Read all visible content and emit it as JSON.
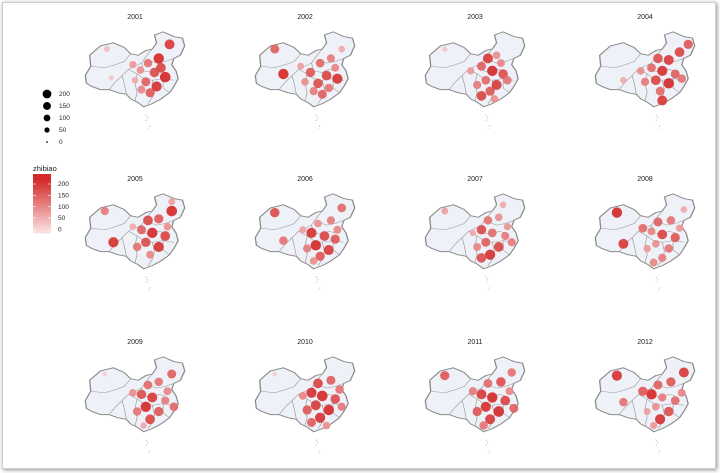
{
  "chart_data": {
    "type": "map",
    "panel_titles": [
      "2001",
      "2002",
      "2003",
      "2004",
      "2005",
      "2006",
      "2007",
      "2008",
      "2009",
      "2010",
      "2011",
      "2012"
    ],
    "legend": {
      "size": {
        "entries": [
          200,
          150,
          100,
          50,
          0
        ]
      },
      "color": {
        "title": "zhibiao",
        "breaks": [
          200,
          150,
          100,
          50,
          0
        ],
        "low_color": "#fff5f5",
        "high_color": "#d42a2a"
      }
    },
    "colors": {
      "land": "#eef2f8",
      "border": "#8a8a8a",
      "point_high": "#d42a2a",
      "point_low": "#fbe0e0"
    },
    "point_values": [
      [
        [
          0.24,
          0.18,
          40
        ],
        [
          0.82,
          0.12,
          180
        ],
        [
          0.62,
          0.36,
          120
        ],
        [
          0.72,
          0.3,
          200
        ],
        [
          0.55,
          0.45,
          90
        ],
        [
          0.68,
          0.48,
          160
        ],
        [
          0.78,
          0.54,
          210
        ],
        [
          0.6,
          0.6,
          140
        ],
        [
          0.7,
          0.66,
          190
        ],
        [
          0.5,
          0.58,
          60
        ],
        [
          0.64,
          0.74,
          150
        ],
        [
          0.56,
          0.7,
          100
        ],
        [
          0.74,
          0.42,
          170
        ],
        [
          0.28,
          0.55,
          30
        ],
        [
          0.48,
          0.38,
          80
        ]
      ],
      [
        [
          0.22,
          0.18,
          140
        ],
        [
          0.3,
          0.5,
          200
        ],
        [
          0.64,
          0.36,
          130
        ],
        [
          0.74,
          0.3,
          110
        ],
        [
          0.55,
          0.48,
          150
        ],
        [
          0.7,
          0.52,
          170
        ],
        [
          0.8,
          0.56,
          190
        ],
        [
          0.62,
          0.62,
          160
        ],
        [
          0.72,
          0.68,
          120
        ],
        [
          0.5,
          0.6,
          90
        ],
        [
          0.66,
          0.76,
          140
        ],
        [
          0.58,
          0.72,
          110
        ],
        [
          0.78,
          0.42,
          100
        ],
        [
          0.46,
          0.4,
          70
        ],
        [
          0.84,
          0.18,
          60
        ]
      ],
      [
        [
          0.22,
          0.18,
          30
        ],
        [
          0.62,
          0.3,
          180
        ],
        [
          0.7,
          0.26,
          90
        ],
        [
          0.56,
          0.4,
          140
        ],
        [
          0.66,
          0.46,
          200
        ],
        [
          0.76,
          0.5,
          160
        ],
        [
          0.6,
          0.58,
          130
        ],
        [
          0.7,
          0.64,
          180
        ],
        [
          0.52,
          0.64,
          110
        ],
        [
          0.64,
          0.72,
          150
        ],
        [
          0.56,
          0.78,
          170
        ],
        [
          0.74,
          0.36,
          100
        ],
        [
          0.46,
          0.46,
          80
        ],
        [
          0.8,
          0.58,
          120
        ],
        [
          0.68,
          0.82,
          90
        ]
      ],
      [
        [
          0.9,
          0.12,
          150
        ],
        [
          0.82,
          0.22,
          170
        ],
        [
          0.62,
          0.3,
          160
        ],
        [
          0.72,
          0.32,
          180
        ],
        [
          0.56,
          0.42,
          130
        ],
        [
          0.66,
          0.46,
          190
        ],
        [
          0.78,
          0.5,
          140
        ],
        [
          0.6,
          0.58,
          170
        ],
        [
          0.72,
          0.62,
          200
        ],
        [
          0.5,
          0.6,
          110
        ],
        [
          0.64,
          0.72,
          130
        ],
        [
          0.84,
          0.56,
          120
        ],
        [
          0.3,
          0.58,
          60
        ],
        [
          0.66,
          0.84,
          180
        ],
        [
          0.46,
          0.46,
          90
        ]
      ],
      [
        [
          0.22,
          0.18,
          110
        ],
        [
          0.3,
          0.58,
          190
        ],
        [
          0.62,
          0.3,
          170
        ],
        [
          0.72,
          0.28,
          150
        ],
        [
          0.84,
          0.18,
          210
        ],
        [
          0.56,
          0.42,
          140
        ],
        [
          0.66,
          0.46,
          200
        ],
        [
          0.78,
          0.5,
          170
        ],
        [
          0.6,
          0.58,
          160
        ],
        [
          0.72,
          0.64,
          190
        ],
        [
          0.52,
          0.64,
          120
        ],
        [
          0.64,
          0.74,
          100
        ],
        [
          0.48,
          0.38,
          60
        ],
        [
          0.8,
          0.38,
          90
        ],
        [
          0.84,
          0.06,
          70
        ]
      ],
      [
        [
          0.22,
          0.2,
          160
        ],
        [
          0.3,
          0.56,
          120
        ],
        [
          0.62,
          0.34,
          90
        ],
        [
          0.74,
          0.3,
          110
        ],
        [
          0.84,
          0.14,
          130
        ],
        [
          0.56,
          0.46,
          190
        ],
        [
          0.68,
          0.5,
          170
        ],
        [
          0.78,
          0.54,
          150
        ],
        [
          0.6,
          0.62,
          200
        ],
        [
          0.72,
          0.68,
          180
        ],
        [
          0.52,
          0.66,
          110
        ],
        [
          0.64,
          0.76,
          150
        ],
        [
          0.48,
          0.42,
          70
        ],
        [
          0.8,
          0.42,
          100
        ],
        [
          0.58,
          0.82,
          90
        ]
      ],
      [
        [
          0.22,
          0.18,
          70
        ],
        [
          0.62,
          0.3,
          120
        ],
        [
          0.72,
          0.26,
          90
        ],
        [
          0.56,
          0.42,
          160
        ],
        [
          0.66,
          0.46,
          130
        ],
        [
          0.78,
          0.5,
          110
        ],
        [
          0.6,
          0.58,
          140
        ],
        [
          0.72,
          0.64,
          170
        ],
        [
          0.52,
          0.64,
          100
        ],
        [
          0.64,
          0.74,
          190
        ],
        [
          0.56,
          0.78,
          160
        ],
        [
          0.8,
          0.38,
          80
        ],
        [
          0.48,
          0.46,
          60
        ],
        [
          0.84,
          0.58,
          110
        ],
        [
          0.76,
          0.1,
          60
        ]
      ],
      [
        [
          0.24,
          0.2,
          200
        ],
        [
          0.3,
          0.6,
          180
        ],
        [
          0.62,
          0.32,
          140
        ],
        [
          0.74,
          0.3,
          120
        ],
        [
          0.86,
          0.16,
          60
        ],
        [
          0.56,
          0.44,
          100
        ],
        [
          0.66,
          0.48,
          170
        ],
        [
          0.78,
          0.52,
          150
        ],
        [
          0.6,
          0.6,
          90
        ],
        [
          0.72,
          0.66,
          120
        ],
        [
          0.52,
          0.66,
          80
        ],
        [
          0.66,
          0.78,
          110
        ],
        [
          0.48,
          0.4,
          130
        ],
        [
          0.82,
          0.4,
          80
        ],
        [
          0.58,
          0.84,
          100
        ]
      ],
      [
        [
          0.22,
          0.18,
          20
        ],
        [
          0.62,
          0.32,
          130
        ],
        [
          0.72,
          0.28,
          120
        ],
        [
          0.84,
          0.18,
          140
        ],
        [
          0.56,
          0.44,
          160
        ],
        [
          0.66,
          0.48,
          180
        ],
        [
          0.78,
          0.52,
          110
        ],
        [
          0.6,
          0.6,
          200
        ],
        [
          0.72,
          0.66,
          150
        ],
        [
          0.52,
          0.66,
          120
        ],
        [
          0.64,
          0.76,
          170
        ],
        [
          0.48,
          0.42,
          90
        ],
        [
          0.8,
          0.4,
          100
        ],
        [
          0.86,
          0.6,
          130
        ],
        [
          0.58,
          0.84,
          60
        ]
      ],
      [
        [
          0.22,
          0.18,
          20
        ],
        [
          0.62,
          0.3,
          170
        ],
        [
          0.74,
          0.26,
          140
        ],
        [
          0.56,
          0.42,
          190
        ],
        [
          0.66,
          0.46,
          210
        ],
        [
          0.78,
          0.5,
          160
        ],
        [
          0.6,
          0.58,
          180
        ],
        [
          0.72,
          0.64,
          200
        ],
        [
          0.52,
          0.64,
          150
        ],
        [
          0.64,
          0.74,
          190
        ],
        [
          0.56,
          0.8,
          140
        ],
        [
          0.48,
          0.46,
          100
        ],
        [
          0.82,
          0.38,
          120
        ],
        [
          0.84,
          0.6,
          110
        ],
        [
          0.7,
          0.84,
          90
        ]
      ],
      [
        [
          0.22,
          0.2,
          150
        ],
        [
          0.62,
          0.3,
          130
        ],
        [
          0.74,
          0.28,
          160
        ],
        [
          0.84,
          0.16,
          120
        ],
        [
          0.56,
          0.44,
          180
        ],
        [
          0.66,
          0.48,
          200
        ],
        [
          0.78,
          0.52,
          170
        ],
        [
          0.6,
          0.6,
          190
        ],
        [
          0.72,
          0.66,
          210
        ],
        [
          0.52,
          0.66,
          150
        ],
        [
          0.64,
          0.76,
          180
        ],
        [
          0.48,
          0.4,
          110
        ],
        [
          0.82,
          0.4,
          100
        ],
        [
          0.86,
          0.62,
          140
        ],
        [
          0.58,
          0.84,
          120
        ]
      ],
      [
        [
          0.24,
          0.2,
          190
        ],
        [
          0.3,
          0.54,
          120
        ],
        [
          0.62,
          0.32,
          140
        ],
        [
          0.74,
          0.28,
          150
        ],
        [
          0.86,
          0.16,
          180
        ],
        [
          0.56,
          0.44,
          200
        ],
        [
          0.66,
          0.48,
          110
        ],
        [
          0.78,
          0.52,
          130
        ],
        [
          0.6,
          0.6,
          90
        ],
        [
          0.72,
          0.66,
          160
        ],
        [
          0.52,
          0.66,
          70
        ],
        [
          0.64,
          0.76,
          190
        ],
        [
          0.48,
          0.4,
          150
        ],
        [
          0.84,
          0.42,
          100
        ],
        [
          0.58,
          0.84,
          80
        ]
      ]
    ]
  }
}
